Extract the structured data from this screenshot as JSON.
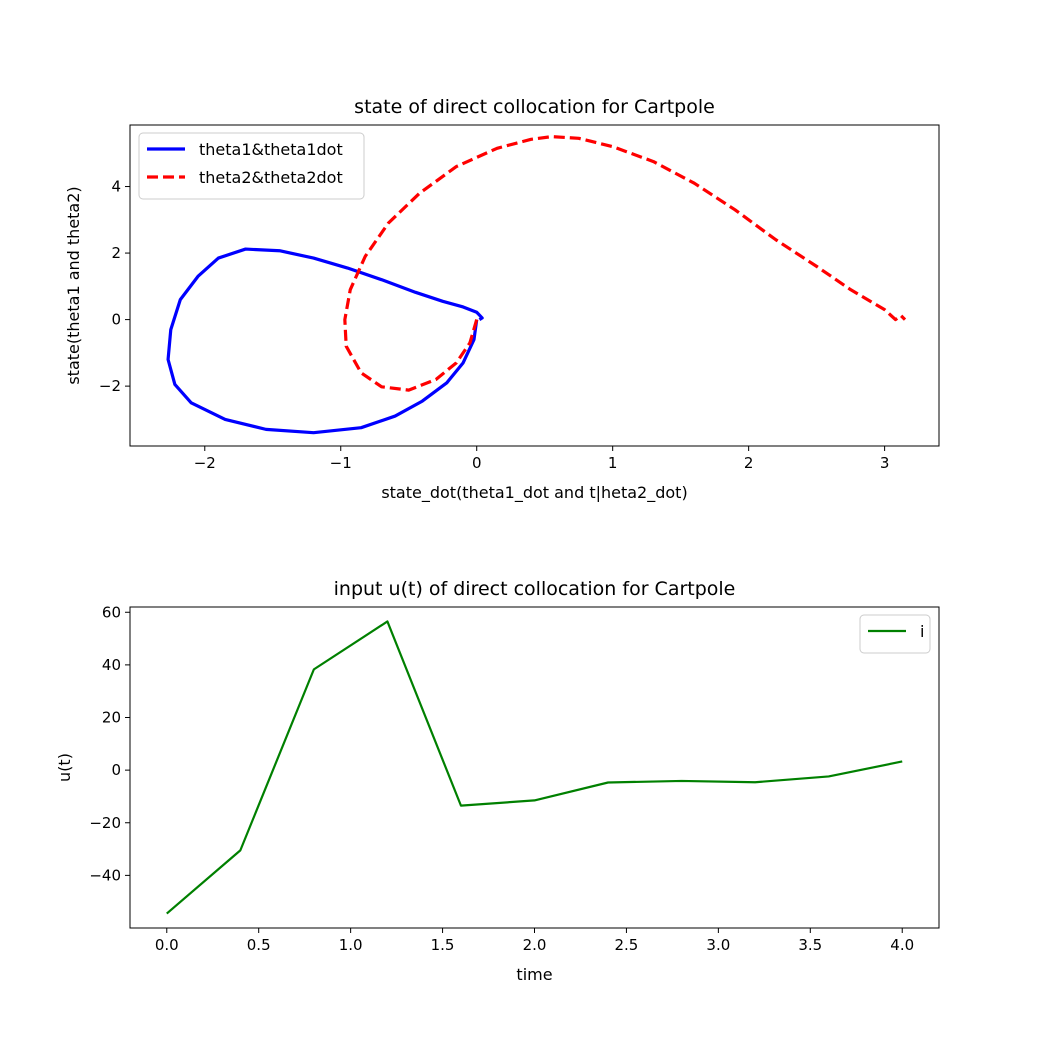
{
  "chart_data": [
    {
      "type": "line",
      "title": "state of direct collocation for Cartpole",
      "xlabel": "state_dot(theta1_dot and t|heta2_dot)",
      "ylabel": "state(theta1 and theta2)",
      "xlim": [
        -2.55,
        3.4
      ],
      "ylim": [
        -3.8,
        5.85
      ],
      "xticks": [
        -2,
        -1,
        0,
        1,
        2,
        3
      ],
      "xtick_labels": [
        "−2",
        "−1",
        "0",
        "1",
        "2",
        "3"
      ],
      "yticks": [
        -2,
        0,
        2,
        4
      ],
      "ytick_labels": [
        "−2",
        "0",
        "2",
        "4"
      ],
      "grid": false,
      "legend_position": "upper-left",
      "series": [
        {
          "name": "theta1&theta1dot",
          "color": "#0000ff",
          "style": "solid",
          "x": [
            0.0,
            -0.02,
            -0.1,
            -0.22,
            -0.4,
            -0.6,
            -0.85,
            -1.2,
            -1.55,
            -1.85,
            -2.1,
            -2.22,
            -2.27,
            -2.25,
            -2.18,
            -2.05,
            -1.9,
            -1.7,
            -1.45,
            -1.2,
            -0.95,
            -0.7,
            -0.45,
            -0.25,
            -0.1,
            0.0,
            0.04,
            0.02
          ],
          "y": [
            0.0,
            -0.6,
            -1.3,
            -1.9,
            -2.45,
            -2.9,
            -3.25,
            -3.4,
            -3.3,
            -3.0,
            -2.5,
            -1.95,
            -1.2,
            -0.3,
            0.6,
            1.3,
            1.85,
            2.12,
            2.07,
            1.85,
            1.55,
            1.2,
            0.82,
            0.55,
            0.38,
            0.22,
            0.05,
            0.0
          ]
        },
        {
          "name": "theta2&theta2dot",
          "color": "#ff0000",
          "style": "dashed",
          "x": [
            0.0,
            -0.05,
            -0.15,
            -0.3,
            -0.5,
            -0.7,
            -0.85,
            -0.96,
            -0.97,
            -0.93,
            -0.82,
            -0.65,
            -0.42,
            -0.15,
            0.15,
            0.4,
            0.55,
            0.75,
            1.0,
            1.3,
            1.6,
            1.9,
            2.2,
            2.5,
            2.75,
            3.0,
            3.08,
            3.12,
            3.15
          ],
          "y": [
            0.0,
            -0.7,
            -1.3,
            -1.8,
            -2.12,
            -2.02,
            -1.6,
            -0.8,
            0.0,
            0.9,
            1.9,
            2.9,
            3.8,
            4.6,
            5.15,
            5.42,
            5.5,
            5.45,
            5.2,
            4.75,
            4.1,
            3.3,
            2.4,
            1.6,
            0.9,
            0.3,
            0.0,
            0.12,
            0.0
          ]
        }
      ]
    },
    {
      "type": "line",
      "title": "input u(t) of direct collocation for Cartpole",
      "xlabel": "time",
      "ylabel": "u(t)",
      "xlim": [
        -0.2,
        4.2
      ],
      "ylim": [
        -60,
        62
      ],
      "xticks": [
        0.0,
        0.5,
        1.0,
        1.5,
        2.0,
        2.5,
        3.0,
        3.5,
        4.0
      ],
      "xtick_labels": [
        "0.0",
        "0.5",
        "1.0",
        "1.5",
        "2.0",
        "2.5",
        "3.0",
        "3.5",
        "4.0"
      ],
      "yticks": [
        -40,
        -20,
        0,
        20,
        40,
        60
      ],
      "ytick_labels": [
        "−40",
        "−20",
        "0",
        "20",
        "40",
        "60"
      ],
      "grid": false,
      "legend_position": "upper-right",
      "series": [
        {
          "name": "i",
          "color": "#008000",
          "style": "solid",
          "x": [
            0.0,
            0.4,
            0.8,
            1.2,
            1.6,
            2.0,
            2.4,
            2.8,
            3.2,
            3.6,
            4.0
          ],
          "y": [
            -54.5,
            -30.5,
            38.3,
            56.5,
            -13.5,
            -11.5,
            -4.7,
            -4.1,
            -4.6,
            -2.4,
            3.3
          ]
        }
      ]
    }
  ]
}
